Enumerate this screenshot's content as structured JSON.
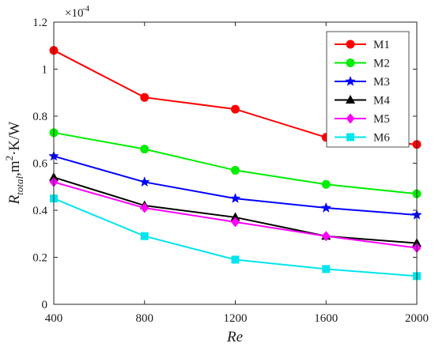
{
  "chart_data": {
    "type": "line",
    "x": [
      400,
      800,
      1200,
      1600,
      2000
    ],
    "xticks": [
      "400",
      "800",
      "1200",
      "1600",
      "2000"
    ],
    "xlim": [
      400,
      2000
    ],
    "yticks": [
      "0",
      "0.2",
      "0.4",
      "0.6",
      "0.8",
      "1",
      "1.2"
    ],
    "ylim": [
      0,
      1.2
    ],
    "y_multiplier": "×10",
    "y_exponent": "-4",
    "xlabel": "Re",
    "ylabel": {
      "symbol": "R",
      "subscript": "total",
      "unit_a": ",m",
      "unit_sup": "2",
      "unit_b": "·K/W"
    },
    "grid": false,
    "legend_position": "top-right",
    "series": [
      {
        "name": "M1",
        "color": "#ff0000",
        "marker": "circle",
        "values": [
          1.08,
          0.88,
          0.83,
          0.71,
          0.68
        ]
      },
      {
        "name": "M2",
        "color": "#00ee00",
        "marker": "circle",
        "values": [
          0.73,
          0.66,
          0.57,
          0.51,
          0.47
        ]
      },
      {
        "name": "M3",
        "color": "#0000ff",
        "marker": "star",
        "values": [
          0.63,
          0.52,
          0.45,
          0.41,
          0.38
        ]
      },
      {
        "name": "M4",
        "color": "#000000",
        "marker": "triangle",
        "values": [
          0.54,
          0.42,
          0.37,
          0.29,
          0.26
        ]
      },
      {
        "name": "M5",
        "color": "#ff00ff",
        "marker": "diamond",
        "values": [
          0.52,
          0.41,
          0.35,
          0.29,
          0.24
        ]
      },
      {
        "name": "M6",
        "color": "#00e5ee",
        "marker": "square",
        "values": [
          0.45,
          0.29,
          0.19,
          0.15,
          0.12
        ]
      }
    ]
  }
}
